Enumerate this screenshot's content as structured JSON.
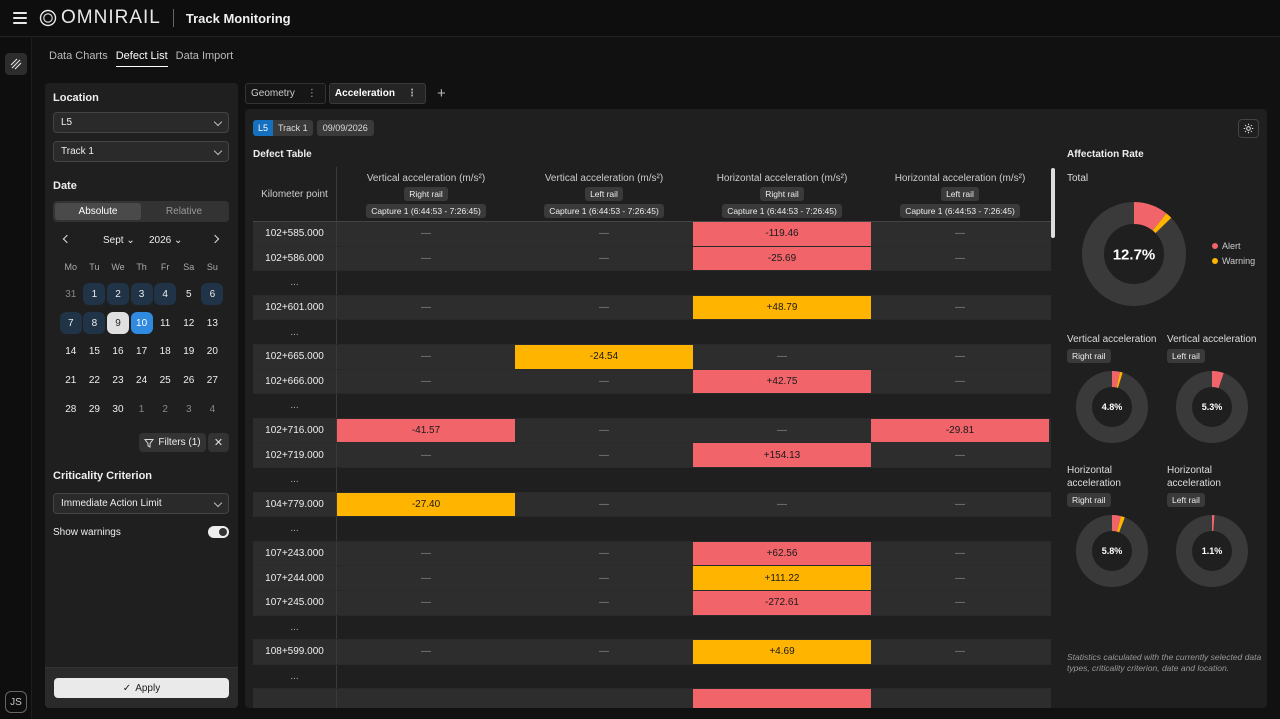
{
  "app": {
    "logo_text": "OMNIRAIL",
    "title": "Track Monitoring"
  },
  "user": {
    "initials": "JS"
  },
  "tabs": [
    "Data Charts",
    "Defect List",
    "Data Import"
  ],
  "active_tab": "Defect List",
  "sidebar": {
    "location_label": "Location",
    "location_value": "L5",
    "track_value": "Track 1",
    "date_label": "Date",
    "date_modes": [
      "Absolute",
      "Relative"
    ],
    "calendar": {
      "month": "Sept",
      "year": "2026",
      "dows": [
        "Mo",
        "Tu",
        "We",
        "Th",
        "Fr",
        "Sa",
        "Su"
      ],
      "days": [
        {
          "d": "31",
          "s": "muted"
        },
        {
          "d": "1",
          "s": "inrange"
        },
        {
          "d": "2",
          "s": "inrange"
        },
        {
          "d": "3",
          "s": "inrange"
        },
        {
          "d": "4",
          "s": "inrange"
        },
        {
          "d": "5",
          "s": ""
        },
        {
          "d": "6",
          "s": "inrange"
        },
        {
          "d": "7",
          "s": "inrange"
        },
        {
          "d": "8",
          "s": "inrange"
        },
        {
          "d": "9",
          "s": "today"
        },
        {
          "d": "10",
          "s": "sel"
        },
        {
          "d": "11",
          "s": ""
        },
        {
          "d": "12",
          "s": ""
        },
        {
          "d": "13",
          "s": ""
        },
        {
          "d": "14",
          "s": ""
        },
        {
          "d": "15",
          "s": ""
        },
        {
          "d": "16",
          "s": ""
        },
        {
          "d": "17",
          "s": ""
        },
        {
          "d": "18",
          "s": ""
        },
        {
          "d": "19",
          "s": ""
        },
        {
          "d": "20",
          "s": ""
        },
        {
          "d": "21",
          "s": ""
        },
        {
          "d": "22",
          "s": ""
        },
        {
          "d": "23",
          "s": ""
        },
        {
          "d": "24",
          "s": ""
        },
        {
          "d": "25",
          "s": ""
        },
        {
          "d": "26",
          "s": ""
        },
        {
          "d": "27",
          "s": ""
        },
        {
          "d": "28",
          "s": ""
        },
        {
          "d": "29",
          "s": ""
        },
        {
          "d": "30",
          "s": ""
        },
        {
          "d": "1",
          "s": "muted"
        },
        {
          "d": "2",
          "s": "muted"
        },
        {
          "d": "3",
          "s": "muted"
        },
        {
          "d": "4",
          "s": "muted"
        }
      ]
    },
    "filters_label": "Filters (1)",
    "criterion_label": "Criticality Criterion",
    "criterion_value": "Immediate Action Limit",
    "show_warnings_label": "Show warnings",
    "show_warnings_on": true,
    "apply_label": "Apply"
  },
  "view_tabs": [
    {
      "label": "Geometry"
    },
    {
      "label": "Acceleration"
    }
  ],
  "active_view_tab": "Acceleration",
  "chips": {
    "location": "L5",
    "track": "Track 1",
    "date": "09/09/2026"
  },
  "defect_table": {
    "title": "Defect Table",
    "km_header": "Kilometer point",
    "columns": [
      {
        "title": "Vertical acceleration (m/s²)",
        "rail": "Right rail",
        "capture": "Capture 1 (6:44:53 - 7:26:45)"
      },
      {
        "title": "Vertical acceleration (m/s²)",
        "rail": "Left rail",
        "capture": "Capture 1 (6:44:53 - 7:26:45)"
      },
      {
        "title": "Horizontal acceleration (m/s²)",
        "rail": "Right rail",
        "capture": "Capture 1 (6:44:53 - 7:26:45)"
      },
      {
        "title": "Horizontal acceleration (m/s²)",
        "rail": "Left rail",
        "capture": "Capture 1 (6:44:53 - 7:26:45)"
      }
    ],
    "rows": [
      {
        "km": "102+585.000",
        "cells": [
          [
            "—",
            ""
          ],
          [
            "—",
            ""
          ],
          [
            "-119.46",
            "alert"
          ],
          [
            "—",
            ""
          ]
        ]
      },
      {
        "km": "102+586.000",
        "cells": [
          [
            "—",
            ""
          ],
          [
            "—",
            ""
          ],
          [
            "-25.69",
            "alert"
          ],
          [
            "—",
            ""
          ]
        ]
      },
      {
        "gap": true,
        "km": "..."
      },
      {
        "km": "102+601.000",
        "cells": [
          [
            "—",
            ""
          ],
          [
            "—",
            ""
          ],
          [
            "+48.79",
            "warn"
          ],
          [
            "—",
            ""
          ]
        ]
      },
      {
        "gap": true,
        "km": "..."
      },
      {
        "km": "102+665.000",
        "cells": [
          [
            "—",
            ""
          ],
          [
            "-24.54",
            "warn"
          ],
          [
            "—",
            ""
          ],
          [
            "—",
            ""
          ]
        ]
      },
      {
        "km": "102+666.000",
        "cells": [
          [
            "—",
            ""
          ],
          [
            "—",
            ""
          ],
          [
            "+42.75",
            "alert"
          ],
          [
            "—",
            ""
          ]
        ]
      },
      {
        "gap": true,
        "km": "..."
      },
      {
        "km": "102+716.000",
        "cells": [
          [
            "-41.57",
            "alert"
          ],
          [
            "—",
            ""
          ],
          [
            "—",
            ""
          ],
          [
            "-29.81",
            "alert"
          ]
        ]
      },
      {
        "km": "102+719.000",
        "cells": [
          [
            "—",
            ""
          ],
          [
            "—",
            ""
          ],
          [
            "+154.13",
            "alert"
          ],
          [
            "—",
            ""
          ]
        ]
      },
      {
        "gap": true,
        "km": "..."
      },
      {
        "km": "104+779.000",
        "cells": [
          [
            "-27.40",
            "warn"
          ],
          [
            "—",
            ""
          ],
          [
            "—",
            ""
          ],
          [
            "—",
            ""
          ]
        ]
      },
      {
        "gap": true,
        "km": "..."
      },
      {
        "km": "107+243.000",
        "cells": [
          [
            "—",
            ""
          ],
          [
            "—",
            ""
          ],
          [
            "+62.56",
            "alert"
          ],
          [
            "—",
            ""
          ]
        ]
      },
      {
        "km": "107+244.000",
        "cells": [
          [
            "—",
            ""
          ],
          [
            "—",
            ""
          ],
          [
            "+111.22",
            "warn"
          ],
          [
            "—",
            ""
          ]
        ]
      },
      {
        "km": "107+245.000",
        "cells": [
          [
            "—",
            ""
          ],
          [
            "—",
            ""
          ],
          [
            "-272.61",
            "alert"
          ],
          [
            "—",
            ""
          ]
        ]
      },
      {
        "gap": true,
        "km": "..."
      },
      {
        "km": "108+599.000",
        "cells": [
          [
            "—",
            ""
          ],
          [
            "—",
            ""
          ],
          [
            "+4.69",
            "warn"
          ],
          [
            "—",
            ""
          ]
        ]
      },
      {
        "gap": true,
        "km": "..."
      },
      {
        "km": "",
        "cells": [
          [
            "",
            ""
          ],
          [
            "",
            ""
          ],
          [
            "",
            "alert"
          ],
          [
            "",
            ""
          ]
        ]
      }
    ]
  },
  "affectation": {
    "title": "Affectation Rate",
    "total_label": "Total",
    "total_value": "12.7%",
    "total_alert_pct": 10.7,
    "total_warning_pct": 2.0,
    "legend": [
      "Alert",
      "Warning"
    ],
    "colors": {
      "alert": "#f0646a",
      "warning": "#ffb400",
      "track": "#3a3a3a"
    },
    "minis": [
      {
        "title": "Vertical acceleration",
        "rail": "Right rail",
        "value": "4.8%",
        "alert": 3.6,
        "warning": 1.2
      },
      {
        "title": "Vertical acceleration",
        "rail": "Left rail",
        "value": "5.3%",
        "alert": 5.3,
        "warning": 0
      },
      {
        "title": "Horizontal acceleration",
        "rail": "Right rail",
        "value": "5.8%",
        "alert": 4.0,
        "warning": 1.8
      },
      {
        "title": "Horizontal acceleration",
        "rail": "Left rail",
        "value": "1.1%",
        "alert": 1.1,
        "warning": 0
      }
    ],
    "note": "Statistics calculated with the currently selected data types, criticality criterion, date and location."
  }
}
